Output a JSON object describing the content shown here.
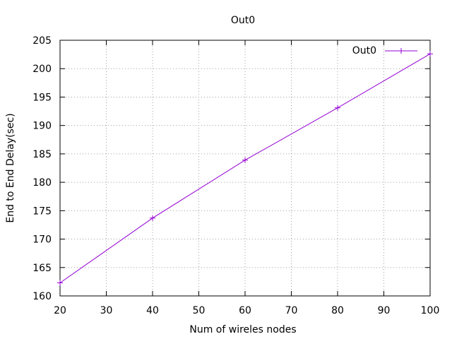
{
  "chart_data": {
    "type": "line",
    "title": "Out0",
    "xlabel": "Num of wireles nodes",
    "ylabel": "End to End Delay(sec)",
    "xlim": [
      20,
      100
    ],
    "ylim": [
      160,
      205
    ],
    "xticks": [
      20,
      30,
      40,
      50,
      60,
      70,
      80,
      90,
      100
    ],
    "yticks": [
      160,
      165,
      170,
      175,
      180,
      185,
      190,
      195,
      200,
      205
    ],
    "grid": true,
    "legend_position": "top-right",
    "series": [
      {
        "name": "Out0",
        "color": "#9400d3",
        "marker": "plus",
        "x": [
          20,
          40,
          60,
          80,
          100
        ],
        "y": [
          162.3,
          173.7,
          183.9,
          193.1,
          202.6
        ]
      }
    ]
  }
}
